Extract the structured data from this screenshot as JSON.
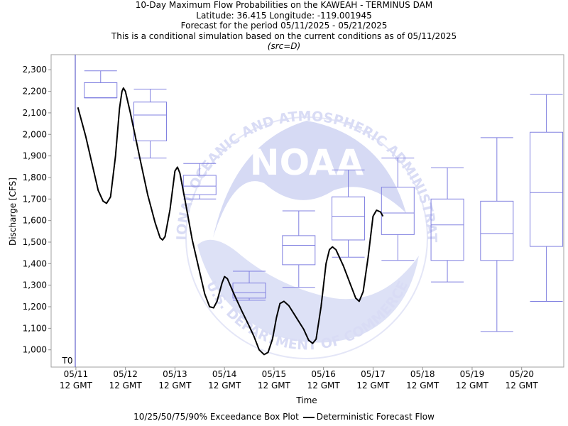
{
  "header": {
    "title": "10-Day Maximum Flow Probabilities on the KAWEAH - TERMINUS DAM",
    "location": "Latitude: 36.415 Longitude: -119.001945",
    "period": "Forecast for the period 05/11/2025 - 05/21/2025",
    "note": "This is a conditional simulation based on the current conditions as of 05/11/2025",
    "source": "(src=D)"
  },
  "watermark": {
    "logo_text": "NOAA",
    "ring_text": "NATIONAL OCEANIC AND ATMOSPHERIC ADMINISTRATION",
    "bottom_text": "U.S. DEPARTMENT OF COMMERCE",
    "color": "#d9dcf5"
  },
  "chart_data": {
    "type": "box",
    "xlabel": "Time",
    "ylabel": "Discharge [CFS]",
    "t0_label": "T0",
    "x_range": [
      -0.5,
      9.85
    ],
    "ylim": [
      920,
      2370
    ],
    "y_ticks": [
      1000,
      1100,
      1200,
      1300,
      1400,
      1500,
      1600,
      1700,
      1800,
      1900,
      2000,
      2100,
      2200,
      2300
    ],
    "y_tick_labels": [
      "1,000",
      "1,100",
      "1,200",
      "1,300",
      "1,400",
      "1,500",
      "1,600",
      "1,700",
      "1,800",
      "1,900",
      "2,000",
      "2,100",
      "2,200",
      "2,300"
    ],
    "x_ticks": [
      {
        "x": 0,
        "line1": "05/11",
        "line2": "12 GMT"
      },
      {
        "x": 1,
        "line1": "05/12",
        "line2": "12 GMT"
      },
      {
        "x": 2,
        "line1": "05/13",
        "line2": "12 GMT"
      },
      {
        "x": 3,
        "line1": "05/14",
        "line2": "12 GMT"
      },
      {
        "x": 4,
        "line1": "05/15",
        "line2": "12 GMT"
      },
      {
        "x": 5,
        "line1": "05/16",
        "line2": "12 GMT"
      },
      {
        "x": 6,
        "line1": "05/17",
        "line2": "12 GMT"
      },
      {
        "x": 7,
        "line1": "05/18",
        "line2": "12 GMT"
      },
      {
        "x": 8,
        "line1": "05/19",
        "line2": "12 GMT"
      },
      {
        "x": 9,
        "line1": "05/20",
        "line2": "12 GMT"
      }
    ],
    "boxes": [
      {
        "x": 0.5,
        "p10": 2170,
        "p25": 2170,
        "p50": 2170,
        "p75": 2240,
        "p90": 2295
      },
      {
        "x": 1.5,
        "p10": 1890,
        "p25": 1970,
        "p50": 2090,
        "p75": 2150,
        "p90": 2210
      },
      {
        "x": 2.5,
        "p10": 1700,
        "p25": 1720,
        "p50": 1760,
        "p75": 1810,
        "p90": 1865
      },
      {
        "x": 3.5,
        "p10": 1230,
        "p25": 1240,
        "p50": 1265,
        "p75": 1310,
        "p90": 1365
      },
      {
        "x": 4.5,
        "p10": 1290,
        "p25": 1395,
        "p50": 1485,
        "p75": 1530,
        "p90": 1645
      },
      {
        "x": 5.5,
        "p10": 1430,
        "p25": 1510,
        "p50": 1620,
        "p75": 1710,
        "p90": 1835
      },
      {
        "x": 6.5,
        "p10": 1415,
        "p25": 1535,
        "p50": 1635,
        "p75": 1755,
        "p90": 1890
      },
      {
        "x": 7.5,
        "p10": 1315,
        "p25": 1415,
        "p50": 1580,
        "p75": 1700,
        "p90": 1845
      },
      {
        "x": 8.5,
        "p10": 1085,
        "p25": 1415,
        "p50": 1540,
        "p75": 1690,
        "p90": 1985
      },
      {
        "x": 9.5,
        "p10": 1225,
        "p25": 1480,
        "p50": 1730,
        "p75": 2010,
        "p90": 2185
      }
    ],
    "deterministic": {
      "name": "Deterministic Forecast Flow",
      "points": [
        [
          0.04,
          2125
        ],
        [
          0.2,
          1990
        ],
        [
          0.35,
          1840
        ],
        [
          0.45,
          1740
        ],
        [
          0.55,
          1690
        ],
        [
          0.62,
          1680
        ],
        [
          0.7,
          1710
        ],
        [
          0.8,
          1900
        ],
        [
          0.88,
          2120
        ],
        [
          0.93,
          2200
        ],
        [
          0.96,
          2215
        ],
        [
          1.0,
          2200
        ],
        [
          1.1,
          2100
        ],
        [
          1.3,
          1880
        ],
        [
          1.45,
          1720
        ],
        [
          1.6,
          1590
        ],
        [
          1.7,
          1520
        ],
        [
          1.75,
          1510
        ],
        [
          1.8,
          1525
        ],
        [
          1.9,
          1650
        ],
        [
          2.0,
          1830
        ],
        [
          2.05,
          1848
        ],
        [
          2.1,
          1820
        ],
        [
          2.2,
          1700
        ],
        [
          2.35,
          1510
        ],
        [
          2.5,
          1360
        ],
        [
          2.6,
          1260
        ],
        [
          2.7,
          1200
        ],
        [
          2.78,
          1195
        ],
        [
          2.85,
          1225
        ],
        [
          2.95,
          1310
        ],
        [
          3.0,
          1340
        ],
        [
          3.06,
          1330
        ],
        [
          3.2,
          1255
        ],
        [
          3.35,
          1180
        ],
        [
          3.5,
          1110
        ],
        [
          3.6,
          1060
        ],
        [
          3.7,
          1000
        ],
        [
          3.8,
          978
        ],
        [
          3.88,
          988
        ],
        [
          3.97,
          1050
        ],
        [
          4.05,
          1150
        ],
        [
          4.12,
          1215
        ],
        [
          4.2,
          1225
        ],
        [
          4.3,
          1205
        ],
        [
          4.45,
          1150
        ],
        [
          4.6,
          1095
        ],
        [
          4.7,
          1045
        ],
        [
          4.78,
          1030
        ],
        [
          4.85,
          1050
        ],
        [
          4.95,
          1200
        ],
        [
          5.05,
          1400
        ],
        [
          5.12,
          1465
        ],
        [
          5.18,
          1478
        ],
        [
          5.25,
          1465
        ],
        [
          5.4,
          1390
        ],
        [
          5.55,
          1300
        ],
        [
          5.65,
          1240
        ],
        [
          5.72,
          1225
        ],
        [
          5.8,
          1270
        ],
        [
          5.9,
          1430
        ],
        [
          6.0,
          1620
        ],
        [
          6.07,
          1648
        ],
        [
          6.15,
          1640
        ],
        [
          6.2,
          1620
        ]
      ]
    }
  },
  "legend": {
    "box_label": "10/25/50/75/90% Exceedance Box Plot",
    "line_label": "Deterministic Forecast Flow"
  },
  "colors": {
    "box": "#8080e0",
    "t0_line": "#4040c0",
    "axis": "#909090",
    "line": "#000000"
  }
}
